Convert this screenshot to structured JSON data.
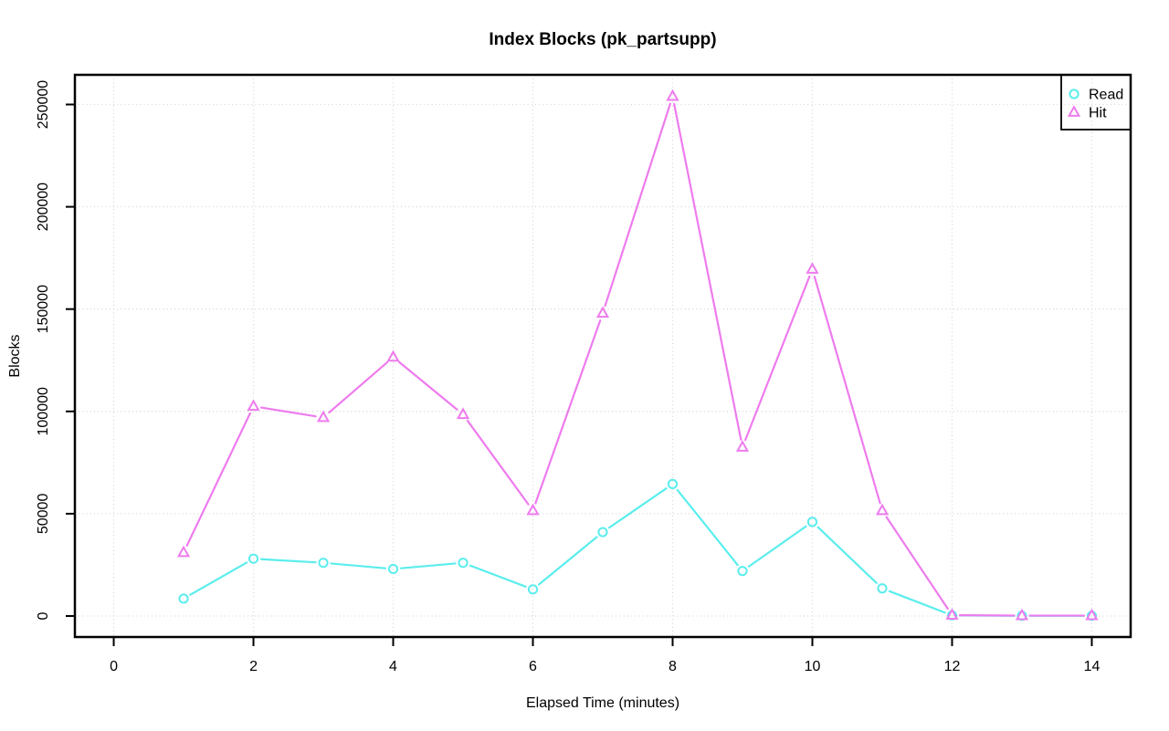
{
  "chart_data": {
    "type": "line",
    "title": "Index Blocks (pk_partsupp)",
    "xlabel": "Elapsed Time (minutes)",
    "ylabel": "Blocks",
    "grid": true,
    "legend_position": "topright",
    "x": [
      1,
      2,
      3,
      4,
      5,
      6,
      7,
      8,
      9,
      10,
      11,
      12,
      13,
      14
    ],
    "series": [
      {
        "name": "Read",
        "marker": "circle",
        "color": "#5beded",
        "values": [
          8500,
          28000,
          26000,
          23000,
          26000,
          13000,
          41000,
          64500,
          22000,
          46000,
          13500,
          300,
          100,
          100
        ]
      },
      {
        "name": "Hit",
        "marker": "triangle",
        "color": "#ee7bee",
        "values": [
          31000,
          102500,
          97000,
          126500,
          98500,
          51500,
          148000,
          254000,
          82500,
          169500,
          51500,
          400,
          200,
          200
        ]
      }
    ],
    "xticks": [
      0,
      2,
      4,
      6,
      8,
      10,
      12,
      14
    ],
    "yticks": [
      0,
      50000,
      100000,
      150000,
      200000,
      250000
    ],
    "xlim": [
      -0.556,
      14.556
    ],
    "ylim": [
      -10260,
      264500
    ],
    "colors": {
      "grid": "#d7d7d7",
      "axis": "#000000",
      "background": "#ffffff"
    }
  }
}
